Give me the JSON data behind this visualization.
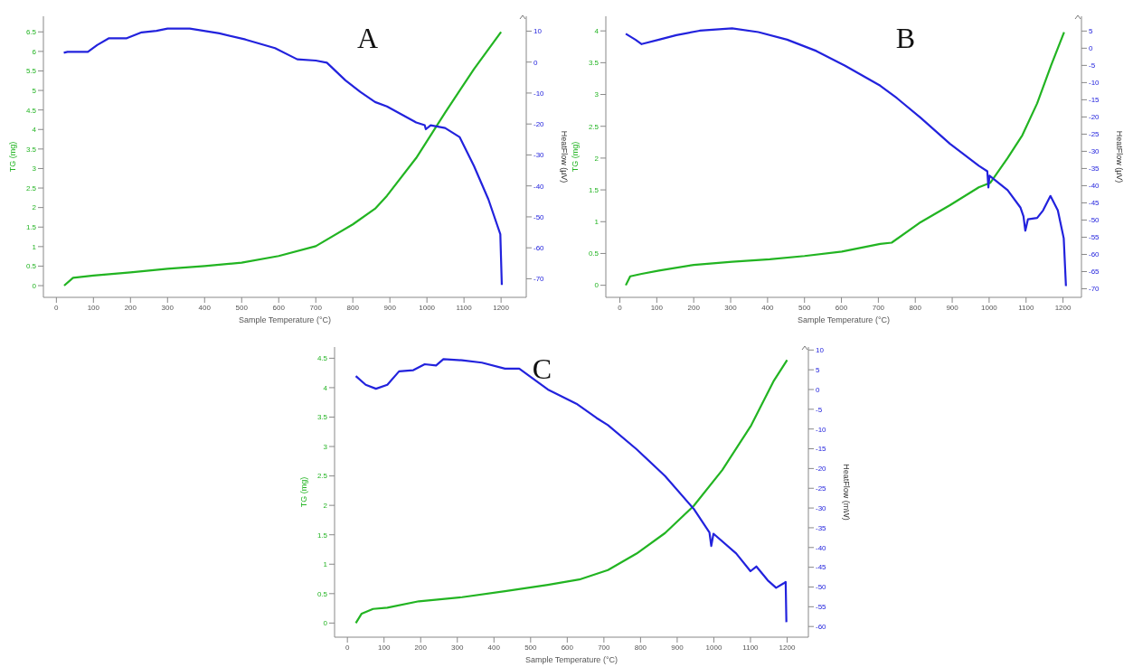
{
  "chart_data": [
    {
      "type": "line",
      "title": "A",
      "xlabel": "Sample Temperature (°C)",
      "ylabel": "TG (mg)",
      "y2label": "HeatFlow (µV)",
      "xlim": [
        -35,
        1268
      ],
      "xticks": [
        0,
        100,
        200,
        300,
        400,
        500,
        600,
        700,
        800,
        900,
        1000,
        1100,
        1200
      ],
      "ylim": [
        -0.3,
        6.9
      ],
      "yticks": [
        0,
        0.5,
        1,
        1.5,
        2,
        2.5,
        3,
        3.5,
        4,
        4.5,
        5,
        5.5,
        6,
        6.5
      ],
      "y2lim": [
        -76,
        14.8
      ],
      "y2ticks": [
        -70,
        -60,
        -50,
        -40,
        -30,
        -20,
        -10,
        0,
        10
      ],
      "series": [
        {
          "color": "#22b422",
          "x": [
            21,
            45,
            100,
            200,
            300,
            400,
            500,
            600,
            700,
            800,
            860,
            892,
            971,
            1049,
            1127,
            1200
          ],
          "values": [
            0,
            0.2,
            0.26,
            0.34,
            0.43,
            0.5,
            0.59,
            0.76,
            1.01,
            1.57,
            1.97,
            2.3,
            3.27,
            4.43,
            5.55,
            6.5
          ]
        },
        {
          "color": "#2222dd",
          "axis": "y2",
          "x": [
            20,
            30,
            85,
            110,
            142,
            190,
            230,
            270,
            300,
            360,
            440,
            510,
            590,
            650,
            700,
            730,
            780,
            820,
            860,
            892,
            971,
            994,
            997,
            1010,
            1049,
            1088,
            1127,
            1166,
            1198,
            1202
          ],
          "values": [
            3,
            3.3,
            3.3,
            5.5,
            7.7,
            7.7,
            9.6,
            10.1,
            10.8,
            10.8,
            9.3,
            7.3,
            4.5,
            0.9,
            0.5,
            -0.2,
            -5.9,
            -9.6,
            -12.9,
            -14.3,
            -19.5,
            -20.4,
            -21.7,
            -20.4,
            -21.3,
            -24.2,
            -33.6,
            -44.4,
            -55.6,
            -72
          ]
        }
      ]
    },
    {
      "type": "line",
      "title": "B",
      "xlabel": "Sample Temperature (°C)",
      "ylabel": "TG (mg)",
      "y2label": "HeatFlow (µV)",
      "xlim": [
        -38,
        1250
      ],
      "xticks": [
        0,
        100,
        200,
        300,
        400,
        500,
        600,
        700,
        800,
        900,
        1000,
        1100,
        1200
      ],
      "ylim": [
        -0.19,
        4.23
      ],
      "yticks": [
        0,
        0.5,
        1,
        1.5,
        2,
        2.5,
        3,
        3.5,
        4
      ],
      "y2lim": [
        -72.5,
        9.3
      ],
      "y2ticks": [
        -70,
        -65,
        -60,
        -55,
        -50,
        -45,
        -40,
        -35,
        -30,
        -25,
        -20,
        -15,
        -10,
        -5,
        0,
        5
      ],
      "series": [
        {
          "color": "#22b422",
          "x": [
            16,
            28,
            59,
            106,
            200,
            304,
            406,
            500,
            601,
            705,
            736,
            814,
            894,
            972,
            1003,
            1050,
            1090,
            1130,
            1168,
            1203
          ],
          "values": [
            0,
            0.14,
            0.18,
            0.23,
            0.32,
            0.37,
            0.41,
            0.46,
            0.53,
            0.65,
            0.67,
            0.99,
            1.26,
            1.54,
            1.61,
            2.0,
            2.36,
            2.86,
            3.46,
            3.98
          ]
        },
        {
          "color": "#2222dd",
          "axis": "y2",
          "x": [
            16,
            42,
            59,
            106,
            153,
            216,
            304,
            375,
            453,
            532,
            610,
            705,
            750,
            814,
            894,
            972,
            995,
            998,
            1001,
            1050,
            1085,
            1093,
            1098,
            1105,
            1130,
            1146,
            1166,
            1186,
            1202,
            1208
          ],
          "values": [
            4.2,
            2.5,
            1.2,
            2.5,
            3.8,
            5.1,
            5.8,
            4.7,
            2.5,
            -0.8,
            -5.1,
            -10.9,
            -14.5,
            -20.2,
            -27.8,
            -34.2,
            -35.8,
            -40.5,
            -37.1,
            -41.3,
            -46.4,
            -48.9,
            -53.1,
            -49.8,
            -49.4,
            -47.2,
            -43,
            -47.2,
            -55.3,
            -69.2
          ]
        }
      ]
    },
    {
      "type": "line",
      "title": "C",
      "xlabel": "Sample Temperature (°C)",
      "ylabel": "TG (mg)",
      "y2label": "HeatFlow (mW)",
      "xlim": [
        -35,
        1258
      ],
      "xticks": [
        0,
        100,
        200,
        300,
        400,
        500,
        600,
        700,
        800,
        900,
        1000,
        1100,
        1200
      ],
      "ylim": [
        -0.24,
        4.69
      ],
      "yticks": [
        0,
        0.5,
        1,
        1.5,
        2,
        2.5,
        3,
        3.5,
        4,
        4.5
      ],
      "y2lim": [
        -62.7,
        10.75
      ],
      "y2ticks": [
        -60,
        -55,
        -50,
        -45,
        -40,
        -35,
        -30,
        -25,
        -20,
        -15,
        -10,
        -5,
        0,
        5,
        10
      ],
      "series": [
        {
          "color": "#22b422",
          "x": [
            23,
            39,
            70,
            109,
            195,
            313,
            430,
            547,
            633,
            711,
            789,
            867,
            945,
            1023,
            1102,
            1164,
            1200
          ],
          "values": [
            0,
            0.16,
            0.24,
            0.26,
            0.37,
            0.44,
            0.54,
            0.65,
            0.74,
            0.9,
            1.18,
            1.53,
            1.99,
            2.6,
            3.36,
            4.12,
            4.47
          ]
        },
        {
          "color": "#2222dd",
          "axis": "y2",
          "x": [
            23,
            50,
            78,
            109,
            141,
            180,
            211,
            242,
            262,
            313,
            367,
            430,
            469,
            547,
            625,
            680,
            711,
            789,
            867,
            945,
            988,
            993,
            999,
            1061,
            1100,
            1116,
            1147,
            1170,
            1190,
            1196,
            1198
          ],
          "values": [
            3.4,
            1.2,
            0.2,
            1.2,
            4.6,
            4.9,
            6.4,
            6.1,
            7.7,
            7.4,
            6.8,
            5.3,
            5.3,
            0,
            -3.6,
            -7.2,
            -9,
            -15.1,
            -21.9,
            -30.2,
            -36.2,
            -39.6,
            -36.5,
            -41.5,
            -46,
            -44.8,
            -48.3,
            -50.2,
            -49.1,
            -48.7,
            -58.9
          ]
        }
      ]
    }
  ]
}
